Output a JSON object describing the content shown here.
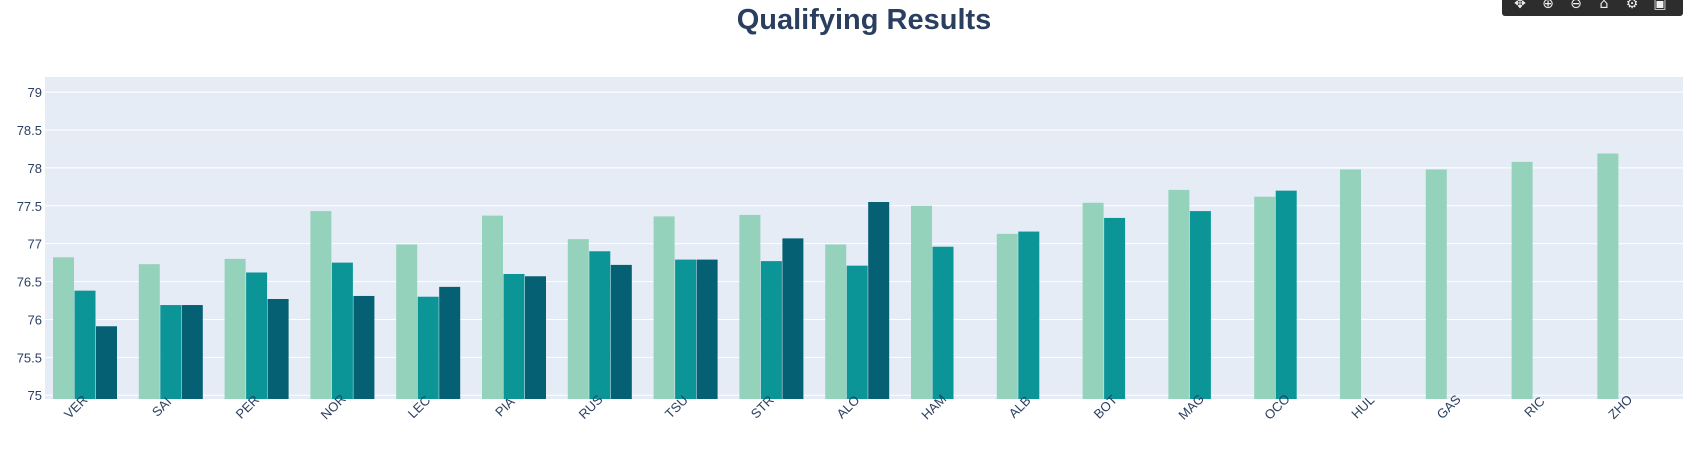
{
  "chart_data": {
    "type": "bar",
    "title": "Qualifying Results",
    "xlabel": "",
    "ylabel": "",
    "ylim": [
      74.95,
      79.2
    ],
    "y_ticks": [
      75,
      75.5,
      76,
      76.5,
      77,
      77.5,
      78,
      78.5,
      79
    ],
    "grid": true,
    "legend": "none",
    "categories": [
      "VER",
      "SAI",
      "PER",
      "NOR",
      "LEC",
      "PIA",
      "RUS",
      "TSU",
      "STR",
      "ALO",
      "HAM",
      "ALB",
      "BOT",
      "MAG",
      "OCO",
      "HUL",
      "GAS",
      "RIC",
      "ZHO"
    ],
    "series": [
      {
        "color": "#95d2bb",
        "values": [
          76.82,
          76.73,
          76.8,
          77.43,
          76.99,
          77.37,
          77.06,
          77.36,
          77.38,
          76.99,
          77.5,
          77.13,
          77.54,
          77.71,
          77.62,
          77.98,
          77.98,
          78.08,
          78.19
        ]
      },
      {
        "color": "#0c9596",
        "values": [
          76.38,
          76.19,
          76.62,
          76.75,
          76.3,
          76.6,
          76.9,
          76.79,
          76.77,
          76.71,
          76.96,
          77.16,
          77.34,
          77.43,
          77.7,
          null,
          null,
          null,
          null
        ]
      },
      {
        "color": "#046072",
        "values": [
          75.91,
          76.19,
          76.27,
          76.31,
          76.43,
          76.57,
          76.72,
          76.79,
          77.07,
          77.55,
          null,
          null,
          null,
          null,
          null,
          null,
          null,
          null,
          null
        ]
      }
    ]
  },
  "colors": {
    "plot_bg": "#e5ecf6",
    "grid": "#ffffff",
    "text": "#2a3f5f",
    "modebar_bg": "#2d2d2d"
  },
  "modebar": {
    "icons": [
      {
        "name": "pan-icon",
        "glyph": "✥"
      },
      {
        "name": "zoom-in-icon",
        "glyph": "⊕"
      },
      {
        "name": "zoom-out-icon",
        "glyph": "⊖"
      },
      {
        "name": "reset-axes-icon",
        "glyph": "⌂"
      },
      {
        "name": "gear-icon",
        "glyph": "⚙"
      },
      {
        "name": "plotly-logo-icon",
        "glyph": "▣"
      }
    ]
  }
}
